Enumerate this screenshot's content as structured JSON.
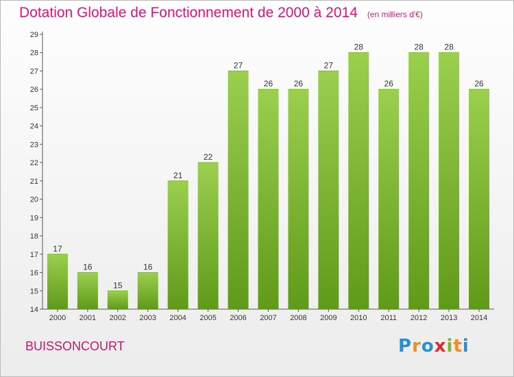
{
  "title": "Dotation Globale de Fonctionnement de 2000 à 2014",
  "unit": "(en milliers d'€)",
  "commune": "BUISSONCOURT",
  "logo": {
    "letters": [
      "P",
      "r",
      "o",
      "x",
      "i",
      "t",
      "i"
    ],
    "colors": [
      "#2a8fd0",
      "#f28c1e",
      "#2a8fd0",
      "#e2262c",
      "#7ab829",
      "#f28c1e",
      "#2a8fd0"
    ]
  },
  "colors": {
    "bar_top": "#9bcf4e",
    "bar_bottom": "#5f9a18",
    "title": "#e0117c"
  },
  "chart_data": {
    "type": "bar",
    "categories": [
      "2000",
      "2001",
      "2002",
      "2003",
      "2004",
      "2005",
      "2006",
      "2007",
      "2008",
      "2009",
      "2010",
      "2011",
      "2012",
      "2013",
      "2014"
    ],
    "values": [
      17,
      16,
      15,
      16,
      21,
      22,
      27,
      26,
      26,
      27,
      28,
      26,
      28,
      28,
      26
    ],
    "title": "Dotation Globale de Fonctionnement de 2000 à 2014",
    "xlabel": "",
    "ylabel": "",
    "ylim": [
      14,
      29
    ],
    "yticks": [
      14,
      15,
      16,
      17,
      18,
      19,
      20,
      21,
      22,
      23,
      24,
      25,
      26,
      27,
      28,
      29
    ],
    "grid": false,
    "legend": "none"
  }
}
